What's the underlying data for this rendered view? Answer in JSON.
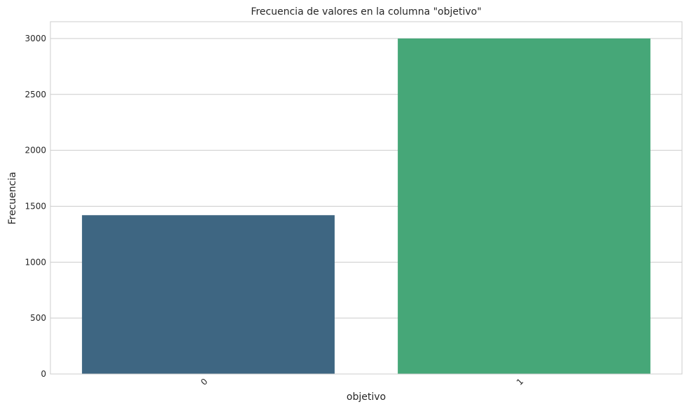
{
  "chart_data": {
    "type": "bar",
    "title": "Frecuencia de valores en la columna \"objetivo\"",
    "xlabel": "objetivo",
    "ylabel": "Frecuencia",
    "categories": [
      "0",
      "1"
    ],
    "values": [
      1420,
      3000
    ],
    "colors": [
      "#3e6682",
      "#46a778"
    ],
    "ylim": [
      0,
      3150
    ],
    "yticks": [
      0,
      500,
      1000,
      1500,
      2000,
      2500,
      3000
    ],
    "grid": "horizontal",
    "xtick_rotation": -45
  }
}
